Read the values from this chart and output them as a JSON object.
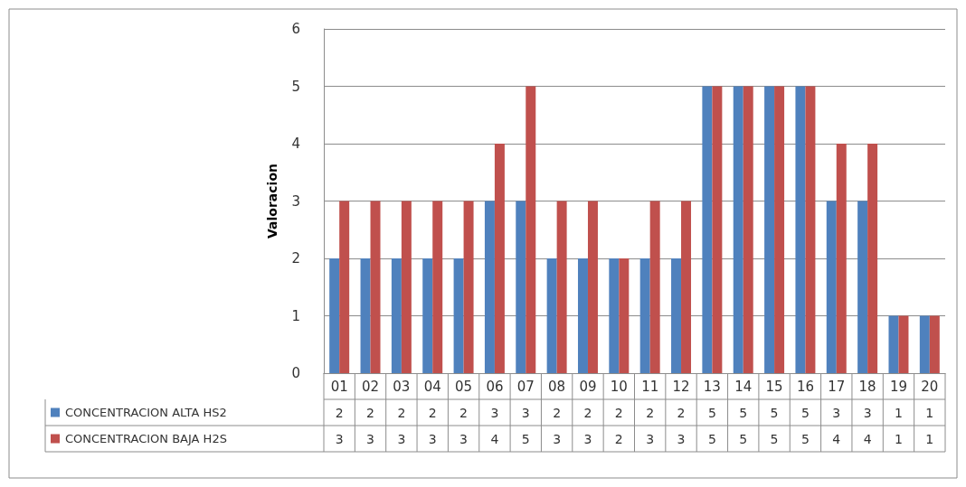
{
  "chart_data": {
    "type": "bar",
    "ylabel": "Valoracion",
    "categories": [
      "01",
      "02",
      "03",
      "04",
      "05",
      "06",
      "07",
      "08",
      "09",
      "10",
      "11",
      "12",
      "13",
      "14",
      "15",
      "16",
      "17",
      "18",
      "19",
      "20"
    ],
    "series": [
      {
        "name": "CONCENTRACION ALTA HS2",
        "color": "#4f81bd",
        "values": [
          2,
          2,
          2,
          2,
          2,
          3,
          3,
          2,
          2,
          2,
          2,
          2,
          5,
          5,
          5,
          5,
          3,
          3,
          1,
          1
        ]
      },
      {
        "name": "CONCENTRACION BAJA H2S",
        "color": "#c0504d",
        "values": [
          3,
          3,
          3,
          3,
          3,
          4,
          5,
          3,
          3,
          2,
          3,
          3,
          5,
          5,
          5,
          5,
          4,
          4,
          1,
          1
        ]
      }
    ],
    "ylim": [
      0,
      6
    ],
    "yticks": [
      0,
      1,
      2,
      3,
      4,
      5,
      6
    ],
    "grid": "y",
    "legend": "bottom",
    "data_labels": true
  }
}
